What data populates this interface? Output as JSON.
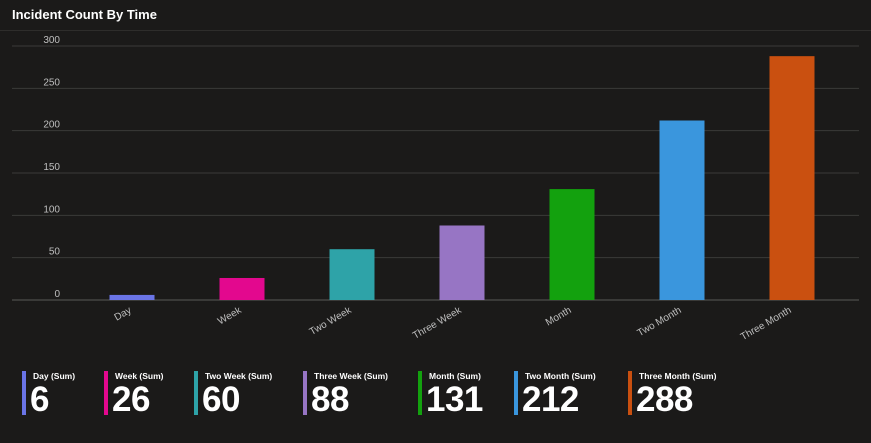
{
  "title": "Incident Count By Time",
  "chart_data": {
    "type": "bar",
    "title": "Incident Count By Time",
    "categories": [
      "Day",
      "Week",
      "Two Week",
      "Three Week",
      "Month",
      "Two Month",
      "Three Month"
    ],
    "values": [
      6,
      26,
      60,
      88,
      131,
      212,
      288
    ],
    "colors": [
      "#6a74e6",
      "#e3088e",
      "#2ea3a8",
      "#9775c4",
      "#13a10e",
      "#3a96dd",
      "#ca5010"
    ],
    "ylim": [
      0,
      300
    ],
    "yticks": [
      0,
      50,
      100,
      150,
      200,
      250,
      300
    ],
    "xlabel": "",
    "ylabel": "",
    "grid": true
  },
  "tiles": [
    {
      "label": "Day (Sum)",
      "value": "6",
      "color": "#6a74e6"
    },
    {
      "label": "Week (Sum)",
      "value": "26",
      "color": "#e3088e"
    },
    {
      "label": "Two Week (Sum)",
      "value": "60",
      "color": "#2ea3a8"
    },
    {
      "label": "Three Week (Sum)",
      "value": "88",
      "color": "#9775c4"
    },
    {
      "label": "Month (Sum)",
      "value": "131",
      "color": "#13a10e"
    },
    {
      "label": "Two Month (Sum)",
      "value": "212",
      "color": "#3a96dd"
    },
    {
      "label": "Three Month (Sum)",
      "value": "288",
      "color": "#ca5010"
    }
  ]
}
